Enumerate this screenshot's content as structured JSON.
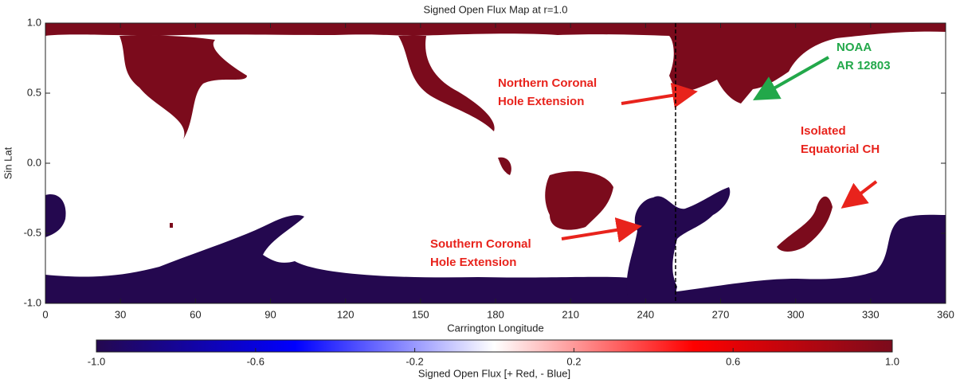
{
  "chart_data": {
    "type": "map",
    "title": "Signed Open Flux Map at r=1.0",
    "x_label": "Carrington Longitude",
    "y_label": "Sin Lat",
    "xlim": [
      0,
      360
    ],
    "xticks": [
      0,
      30,
      60,
      90,
      120,
      150,
      180,
      210,
      240,
      270,
      300,
      330,
      360
    ],
    "ylim": [
      -1,
      1
    ],
    "yticks": [
      {
        "value": -1,
        "label": "-1.0"
      },
      {
        "value": -0.5,
        "label": "-0.5"
      },
      {
        "value": 0,
        "label": "0.0"
      },
      {
        "value": 0.5,
        "label": "0.5"
      },
      {
        "value": 1,
        "label": "1.0"
      }
    ],
    "vline": 252,
    "colorbar": {
      "label": "Signed Open Flux [+ Red, - Blue]",
      "lim": [
        -1,
        1
      ],
      "ticks": [
        {
          "value": -1,
          "label": "-1.0"
        },
        {
          "value": -0.6,
          "label": "-0.6"
        },
        {
          "value": -0.2,
          "label": "-0.2"
        },
        {
          "value": 0.2,
          "label": "0.2"
        },
        {
          "value": 0.6,
          "label": "0.6"
        },
        {
          "value": 1,
          "label": "1.0"
        }
      ],
      "colors": [
        "#24084f",
        "#0000ff",
        "#ffffff",
        "#ff0000",
        "#7b0b1c"
      ]
    },
    "annotations": [
      {
        "lines": [
          "NOAA",
          "AR 12803"
        ],
        "color": "#22a84a"
      },
      {
        "lines": [
          "Northern Coronal",
          "Hole Extension"
        ],
        "color": "#e8231c"
      },
      {
        "lines": [
          "Isolated",
          "Equatorial CH"
        ],
        "color": "#e8231c"
      },
      {
        "lines": [
          "Southern Coronal",
          "Hole Extension"
        ],
        "color": "#e8231c"
      }
    ]
  }
}
